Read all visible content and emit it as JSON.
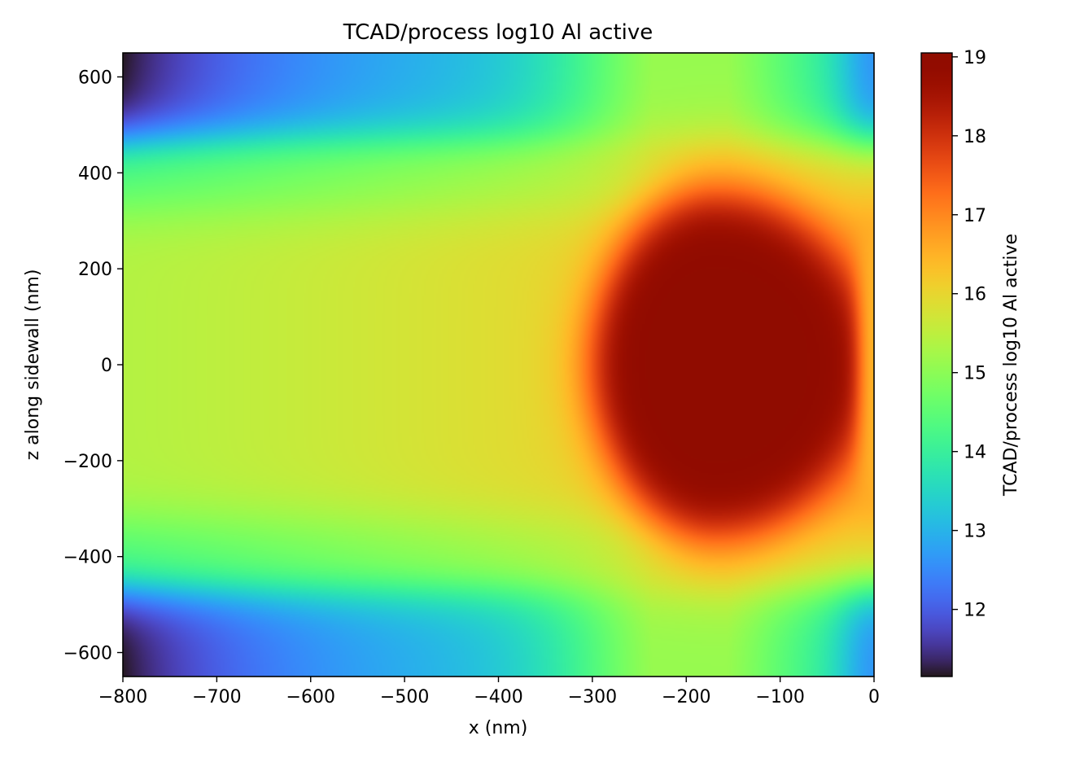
{
  "chart_data": {
    "type": "heatmap",
    "title": "TCAD/process log10 Al active",
    "xlabel": "x (nm)",
    "ylabel": "z along sidewall (nm)",
    "xlim": [
      -800,
      0
    ],
    "ylim": [
      -650,
      650
    ],
    "x_ticks": [
      -800,
      -700,
      -600,
      -500,
      -400,
      -300,
      -200,
      -100,
      0
    ],
    "x_tick_labels": [
      "−800",
      "−700",
      "−600",
      "−500",
      "−400",
      "−300",
      "−200",
      "−100",
      "0"
    ],
    "y_ticks": [
      600,
      400,
      200,
      0,
      -200,
      -400,
      -600
    ],
    "y_tick_labels": [
      "600",
      "400",
      "200",
      "0",
      "−200",
      "−400",
      "−600"
    ],
    "colorbar": {
      "label": "TCAD/process log10 Al active",
      "range": [
        11.15,
        19.05
      ],
      "ticks": [
        12,
        13,
        14,
        15,
        16,
        17,
        18,
        19
      ],
      "tick_labels": [
        "12",
        "13",
        "14",
        "15",
        "16",
        "17",
        "18",
        "19"
      ],
      "colormap": "turbo"
    },
    "regions": {
      "core_peak_value": 19.0,
      "core_center_x": -170,
      "core_z_extent": [
        -360,
        360
      ],
      "core_left_edge_x": -300,
      "center_band_value_at_x_min": 15.4,
      "center_band_value_at_x_mid": 16.2,
      "sidewall_edge_value_at_x0": 16.5,
      "outer_value_at_x_min": 11.15,
      "outer_value_at_x0": 12.5,
      "band_transition_z": 460
    },
    "grid": false,
    "legend": "none"
  }
}
